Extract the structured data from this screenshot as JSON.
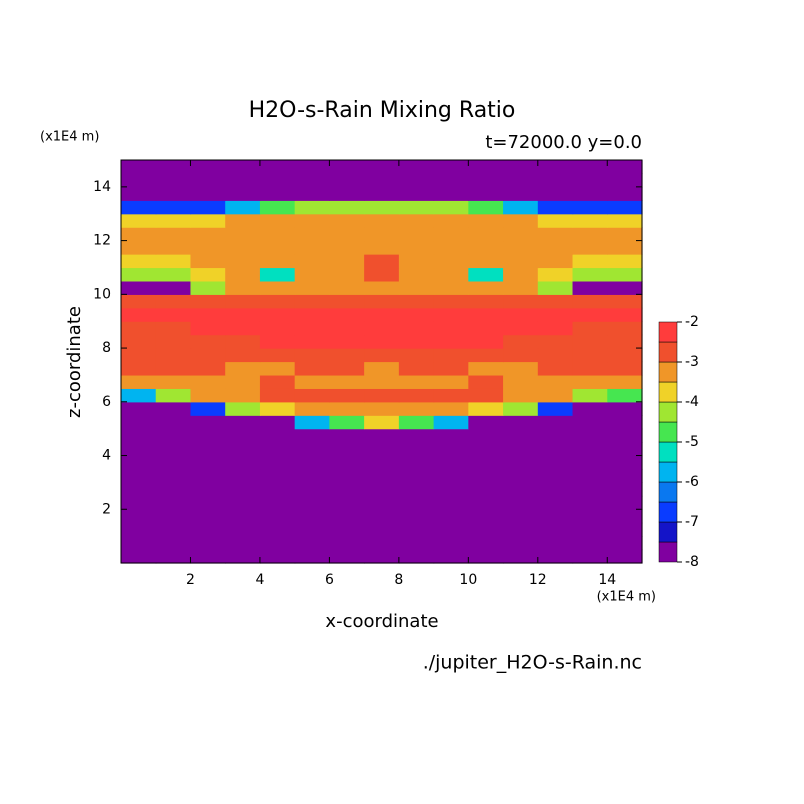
{
  "chart_data": {
    "type": "contour",
    "title": "H2O-s-Rain Mixing Ratio",
    "subtitle": "t=72000.0 y=0.0",
    "x_unit": "(x1E4 m)",
    "y_unit": "(x1E4 m)",
    "xlabel": "x-coordinate",
    "ylabel": "z-coordinate",
    "footer": "./jupiter_H2O-s-Rain.nc",
    "xlim": [
      0,
      15
    ],
    "ylim": [
      0,
      15
    ],
    "xticks": [
      2,
      4,
      6,
      8,
      10,
      12,
      14
    ],
    "yticks": [
      2,
      4,
      6,
      8,
      10,
      12,
      14
    ],
    "x": [
      0.5,
      1.5,
      2.5,
      3.5,
      4.5,
      5.5,
      6.5,
      7.5,
      8.5,
      9.5,
      10.5,
      11.5,
      12.5,
      13.5,
      14.5
    ],
    "y": [
      0.25,
      0.75,
      1.25,
      1.75,
      2.25,
      2.75,
      3.25,
      3.75,
      4.25,
      4.75,
      5.25,
      5.75,
      6.25,
      6.75,
      7.25,
      7.75,
      8.25,
      8.75,
      9.25,
      9.75,
      10.25,
      10.75,
      11.25,
      11.75,
      12.25,
      12.75,
      13.25,
      13.75,
      14.25,
      14.75
    ],
    "values": [
      [
        -8,
        -8,
        -8,
        -8,
        -8,
        -8,
        -8,
        -8,
        -8,
        -8,
        -8,
        -8,
        -8,
        -8,
        -8
      ],
      [
        -8,
        -8,
        -8,
        -8,
        -8,
        -8,
        -8,
        -8,
        -8,
        -8,
        -8,
        -8,
        -8,
        -8,
        -8
      ],
      [
        -8,
        -8,
        -8,
        -8,
        -8,
        -8,
        -8,
        -8,
        -8,
        -8,
        -8,
        -8,
        -8,
        -8,
        -8
      ],
      [
        -8,
        -8,
        -8,
        -8,
        -8,
        -8,
        -8,
        -8,
        -8,
        -8,
        -8,
        -8,
        -8,
        -8,
        -8
      ],
      [
        -8,
        -8,
        -8,
        -8,
        -8,
        -8,
        -8,
        -8,
        -8,
        -8,
        -8,
        -8,
        -8,
        -8,
        -8
      ],
      [
        -8,
        -8,
        -8,
        -8,
        -8,
        -8,
        -8,
        -8,
        -8,
        -8,
        -8,
        -8,
        -8,
        -8,
        -8
      ],
      [
        -8,
        -8,
        -8,
        -8,
        -8,
        -8,
        -8,
        -8,
        -8,
        -8,
        -8,
        -8,
        -8,
        -8,
        -8
      ],
      [
        -8,
        -8,
        -8,
        -8,
        -8,
        -8,
        -8,
        -8,
        -8,
        -8,
        -8,
        -8,
        -8,
        -8,
        -8
      ],
      [
        -8,
        -8,
        -8,
        -8,
        -8,
        -8,
        -8,
        -8,
        -8,
        -8,
        -8,
        -8,
        -8,
        -8,
        -8
      ],
      [
        -8,
        -8,
        -8,
        -8,
        -8,
        -8,
        -8,
        -8,
        -8,
        -8,
        -8,
        -8,
        -8,
        -8,
        -8
      ],
      [
        -8,
        -8,
        -8,
        -8,
        -8,
        -6,
        -5,
        -4,
        -5,
        -6,
        -8,
        -8,
        -8,
        -8,
        -8
      ],
      [
        -8,
        -8,
        -7,
        -4.2,
        -3.7,
        -3.3,
        -3.2,
        -3.2,
        -3.2,
        -3.3,
        -3.7,
        -4.2,
        -7,
        -8,
        -8
      ],
      [
        -6,
        -4.5,
        -3.4,
        -3.2,
        -2.7,
        -2.7,
        -2.7,
        -2.7,
        -2.7,
        -2.7,
        -2.7,
        -3.2,
        -3.4,
        -4.5,
        -5
      ],
      [
        -3.2,
        -3.2,
        -3.2,
        -3.2,
        -2.7,
        -3.2,
        -3.2,
        -3.2,
        -3.2,
        -3.2,
        -2.7,
        -3.2,
        -3.2,
        -3.2,
        -3.2
      ],
      [
        -2.7,
        -2.7,
        -2.7,
        -3.2,
        -3.2,
        -2.7,
        -2.7,
        -3.2,
        -2.7,
        -2.7,
        -3.2,
        -3.2,
        -2.7,
        -2.7,
        -2.7
      ],
      [
        -2.7,
        -2.7,
        -2.7,
        -2.7,
        -2.7,
        -2.7,
        -2.7,
        -2.7,
        -2.7,
        -2.7,
        -2.7,
        -2.7,
        -2.7,
        -2.7,
        -2.7
      ],
      [
        -2.7,
        -2.7,
        -2.7,
        -2.7,
        -2.3,
        -2.3,
        -2.3,
        -2.3,
        -2.3,
        -2.3,
        -2.3,
        -2.7,
        -2.7,
        -2.7,
        -2.7
      ],
      [
        -2.7,
        -2.7,
        -2.3,
        -2.3,
        -2.3,
        -2.3,
        -2.3,
        -2.3,
        -2.3,
        -2.3,
        -2.3,
        -2.3,
        -2.3,
        -2.7,
        -2.7
      ],
      [
        -2.3,
        -2.3,
        -2.3,
        -2.3,
        -2.3,
        -2.3,
        -2.3,
        -2.3,
        -2.3,
        -2.3,
        -2.3,
        -2.3,
        -2.3,
        -2.3,
        -2.3
      ],
      [
        -2.7,
        -2.7,
        -2.7,
        -2.7,
        -2.7,
        -2.7,
        -2.7,
        -2.7,
        -2.7,
        -2.7,
        -2.7,
        -2.7,
        -2.7,
        -2.7,
        -2.7
      ],
      [
        -8,
        -8,
        -4.3,
        -3.2,
        -3.2,
        -3.2,
        -3.2,
        -3.2,
        -3.2,
        -3.2,
        -3.2,
        -3.2,
        -4.3,
        -8,
        -8
      ],
      [
        -4.3,
        -4.3,
        -3.7,
        -3.2,
        -5.5,
        -3.2,
        -3.2,
        -2.7,
        -3.2,
        -3.2,
        -5.5,
        -3.2,
        -3.7,
        -4.3,
        -4.3
      ],
      [
        -3.7,
        -3.7,
        -3.2,
        -3.2,
        -3.2,
        -3.2,
        -3.2,
        -2.7,
        -3.2,
        -3.2,
        -3.2,
        -3.2,
        -3.2,
        -3.7,
        -3.7
      ],
      [
        -3.2,
        -3.2,
        -3.2,
        -3.2,
        -3.2,
        -3.2,
        -3.2,
        -3.2,
        -3.2,
        -3.2,
        -3.2,
        -3.2,
        -3.2,
        -3.2,
        -3.2
      ],
      [
        -3.2,
        -3.2,
        -3.2,
        -3.2,
        -3.2,
        -3.2,
        -3.2,
        -3.2,
        -3.2,
        -3.2,
        -3.2,
        -3.2,
        -3.2,
        -3.2,
        -3.2
      ],
      [
        -3.7,
        -3.7,
        -3.7,
        -3.2,
        -3.2,
        -3.2,
        -3.2,
        -3.2,
        -3.2,
        -3.2,
        -3.2,
        -3.2,
        -3.7,
        -3.7,
        -3.7
      ],
      [
        -7,
        -7,
        -7,
        -6,
        -5,
        -4.5,
        -4.5,
        -4.5,
        -4.5,
        -4.5,
        -5,
        -6,
        -7,
        -7,
        -7
      ],
      [
        -8,
        -8,
        -8,
        -8,
        -8,
        -8,
        -8,
        -8,
        -8,
        -8,
        -8,
        -8,
        -8,
        -8,
        -8
      ],
      [
        -8,
        -8,
        -8,
        -8,
        -8,
        -8,
        -8,
        -8,
        -8,
        -8,
        -8,
        -8,
        -8,
        -8,
        -8
      ],
      [
        -8,
        -8,
        -8,
        -8,
        -8,
        -8,
        -8,
        -8,
        -8,
        -8,
        -8,
        -8,
        -8,
        -8,
        -8
      ]
    ],
    "levels": [
      -8,
      -7.5,
      -7,
      -6.5,
      -6,
      -5.5,
      -5,
      -4.5,
      -4,
      -3.5,
      -3,
      -2.5,
      -2
    ],
    "colors": [
      "#8000a0",
      "#1414c8",
      "#0a3cff",
      "#0a78f0",
      "#00b4f0",
      "#00e0c0",
      "#46e650",
      "#a0e632",
      "#f0d228",
      "#f09628",
      "#f0502d",
      "#ff3c3c",
      "#ffb4b4"
    ],
    "cbar_ticks": [
      -8,
      -7,
      -6,
      -5,
      -4,
      -3,
      -2
    ]
  }
}
